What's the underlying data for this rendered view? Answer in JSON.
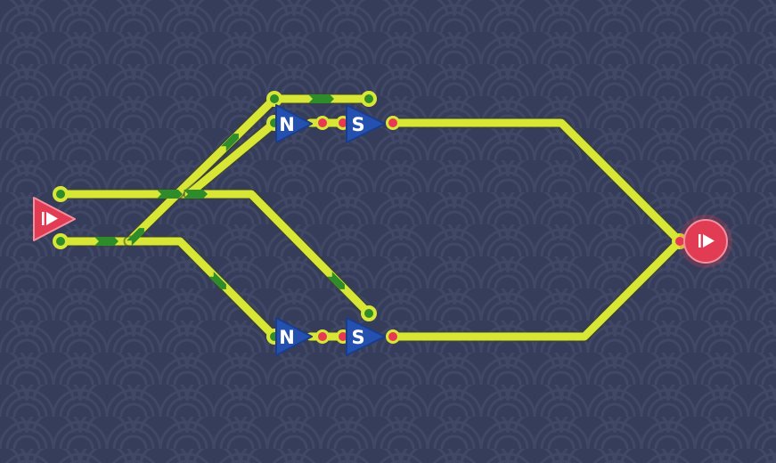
{
  "board": {
    "background_color": "#363d5a",
    "pattern_color": "#404866",
    "wire_color": "#d8e636",
    "wire_outline_color": "#3d4428",
    "flow_marker_color": "#2e8c2a",
    "pin_green": "#2e8c2a",
    "pin_red": "#e53a52",
    "gate_color": "#2450b0",
    "terminal_color": "#e23c54"
  },
  "terminals": {
    "input": {
      "icon": "play-icon",
      "kind": "source"
    },
    "output": {
      "icon": "play-icon",
      "kind": "sink"
    }
  },
  "gates": [
    {
      "id": "gate-top-n",
      "label": "N"
    },
    {
      "id": "gate-top-s",
      "label": "S"
    },
    {
      "id": "gate-bottom-n",
      "label": "N"
    },
    {
      "id": "gate-bottom-s",
      "label": "S"
    }
  ]
}
